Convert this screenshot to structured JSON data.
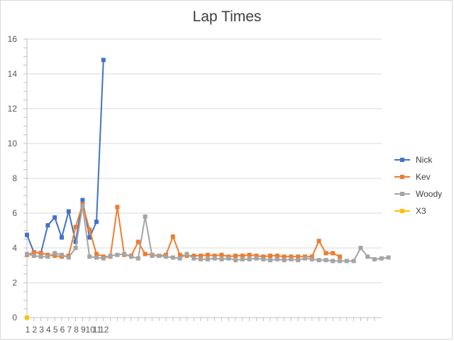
{
  "chart_data": {
    "type": "line",
    "title": "Lap Times",
    "xlabel": "",
    "ylabel": "",
    "ylim": [
      0,
      16
    ],
    "yticks": [
      0,
      2,
      4,
      6,
      8,
      10,
      12,
      14,
      16
    ],
    "x_tick_labels": [
      "1",
      "2",
      "3",
      "4",
      "5",
      "6",
      "7",
      "8",
      "9",
      "10",
      "11",
      "12"
    ],
    "x_count": 50,
    "grid": true,
    "legend_position": "right",
    "series": [
      {
        "name": "Nick",
        "color": "#4472C4",
        "values": [
          4.75,
          3.75,
          3.7,
          5.3,
          5.75,
          4.6,
          6.1,
          4.35,
          6.75,
          4.6,
          5.5,
          14.8
        ]
      },
      {
        "name": "Kev",
        "color": "#ED7D31",
        "values": [
          3.6,
          3.75,
          3.7,
          3.6,
          3.55,
          3.5,
          3.55,
          5.2,
          6.5,
          5.05,
          3.65,
          3.5,
          3.5,
          6.35,
          3.6,
          3.55,
          4.35,
          3.65,
          3.6,
          3.55,
          3.6,
          4.65,
          3.6,
          3.55,
          3.55,
          3.55,
          3.6,
          3.55,
          3.6,
          3.5,
          3.55,
          3.55,
          3.6,
          3.55,
          3.5,
          3.55,
          3.55,
          3.5,
          3.5,
          3.5,
          3.5,
          3.5,
          4.4,
          3.7,
          3.7,
          3.5
        ]
      },
      {
        "name": "Woody",
        "color": "#A5A5A5",
        "values": [
          3.65,
          3.55,
          3.5,
          3.5,
          3.7,
          3.6,
          3.45,
          4.0,
          6.4,
          3.5,
          3.45,
          3.4,
          3.55,
          3.6,
          3.65,
          3.5,
          3.4,
          5.8,
          3.55,
          3.55,
          3.5,
          3.45,
          3.4,
          3.65,
          3.4,
          3.35,
          3.35,
          3.4,
          3.35,
          3.4,
          3.3,
          3.35,
          3.35,
          3.4,
          3.35,
          3.3,
          3.35,
          3.3,
          3.35,
          3.3,
          3.4,
          3.35,
          3.3,
          3.3,
          3.25,
          3.25,
          3.25,
          3.25,
          4.0,
          3.5,
          3.35,
          3.4,
          3.45
        ]
      },
      {
        "name": "X3",
        "color": "#FFC000",
        "values": [
          0
        ]
      }
    ]
  }
}
